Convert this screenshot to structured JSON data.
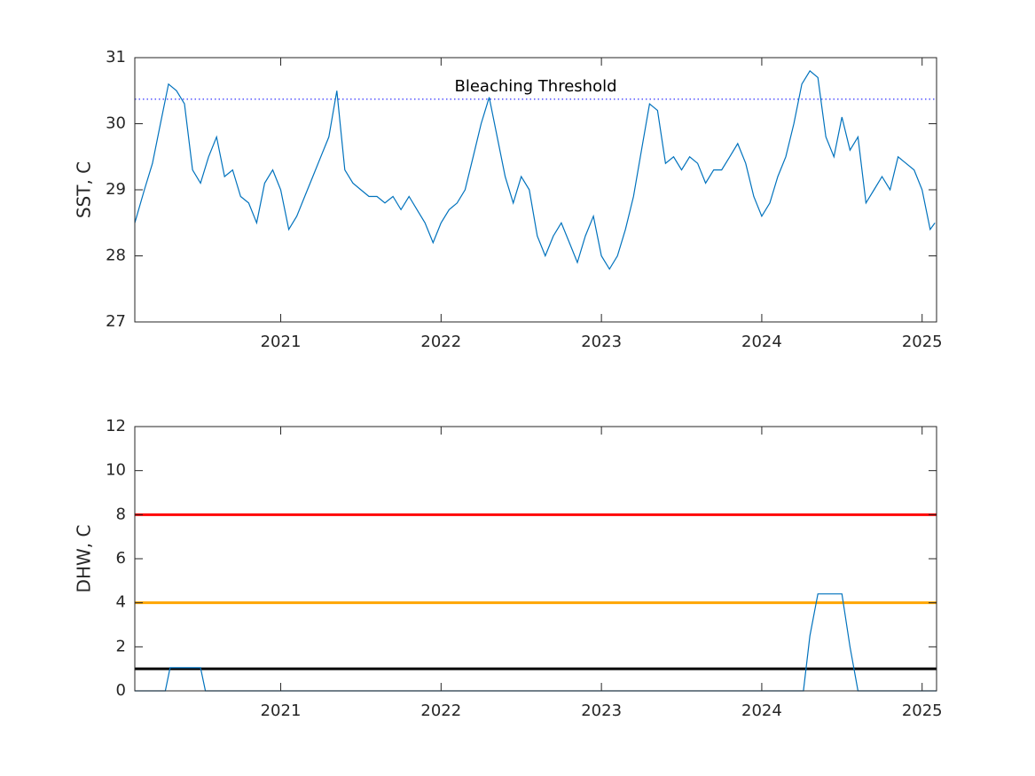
{
  "chart_data": [
    {
      "type": "line",
      "ylabel": "SST, C",
      "color": "#0072bd",
      "xlim": [
        2020.09,
        2025.09
      ],
      "xticks": [
        2021,
        2022,
        2023,
        2024,
        2025
      ],
      "ylim": [
        27,
        31
      ],
      "yticks": [
        27,
        28,
        29,
        30,
        31
      ],
      "x": [
        2020.09,
        2020.15,
        2020.2,
        2020.25,
        2020.3,
        2020.35,
        2020.4,
        2020.45,
        2020.5,
        2020.55,
        2020.6,
        2020.65,
        2020.7,
        2020.75,
        2020.8,
        2020.85,
        2020.9,
        2020.95,
        2021.0,
        2021.05,
        2021.1,
        2021.15,
        2021.2,
        2021.25,
        2021.3,
        2021.35,
        2021.4,
        2021.45,
        2021.5,
        2021.55,
        2021.6,
        2021.65,
        2021.7,
        2021.75,
        2021.8,
        2021.85,
        2021.9,
        2021.95,
        2022.0,
        2022.05,
        2022.1,
        2022.15,
        2022.2,
        2022.25,
        2022.3,
        2022.35,
        2022.4,
        2022.45,
        2022.5,
        2022.55,
        2022.6,
        2022.65,
        2022.7,
        2022.75,
        2022.8,
        2022.85,
        2022.9,
        2022.95,
        2023.0,
        2023.05,
        2023.1,
        2023.15,
        2023.2,
        2023.25,
        2023.3,
        2023.35,
        2023.4,
        2023.45,
        2023.5,
        2023.55,
        2023.6,
        2023.65,
        2023.7,
        2023.75,
        2023.8,
        2023.85,
        2023.9,
        2023.95,
        2024.0,
        2024.05,
        2024.1,
        2024.15,
        2024.2,
        2024.25,
        2024.3,
        2024.35,
        2024.4,
        2024.45,
        2024.5,
        2024.55,
        2024.6,
        2024.65,
        2024.7,
        2024.75,
        2024.8,
        2024.85,
        2024.9,
        2024.95,
        2025.0,
        2025.05,
        2025.08
      ],
      "values": [
        28.5,
        29.0,
        29.4,
        30.0,
        30.6,
        30.5,
        30.3,
        29.3,
        29.1,
        29.5,
        29.8,
        29.2,
        29.3,
        28.9,
        28.8,
        28.5,
        29.1,
        29.3,
        29.0,
        28.4,
        28.6,
        28.9,
        29.2,
        29.5,
        29.8,
        30.5,
        29.3,
        29.1,
        29.0,
        28.9,
        28.9,
        28.8,
        28.9,
        28.7,
        28.9,
        28.7,
        28.5,
        28.2,
        28.5,
        28.7,
        28.8,
        29.0,
        29.5,
        30.0,
        30.4,
        29.8,
        29.2,
        28.8,
        29.2,
        29.0,
        28.3,
        28.0,
        28.3,
        28.5,
        28.2,
        27.9,
        28.3,
        28.6,
        28.0,
        27.8,
        28.0,
        28.4,
        28.9,
        29.6,
        30.3,
        30.2,
        29.4,
        29.5,
        29.3,
        29.5,
        29.4,
        29.1,
        29.3,
        29.3,
        29.5,
        29.7,
        29.4,
        28.9,
        28.6,
        28.8,
        29.2,
        29.5,
        30.0,
        30.6,
        30.8,
        30.7,
        29.8,
        29.5,
        30.1,
        29.6,
        29.8,
        28.8,
        29.0,
        29.2,
        29.0,
        29.5,
        29.4,
        29.3,
        29.0,
        28.4,
        28.5
      ],
      "reference_lines": [
        {
          "value": 30.37,
          "color": "#0000ff",
          "style": "dotted"
        }
      ],
      "annotations": [
        "Bleaching Threshold"
      ]
    },
    {
      "type": "line",
      "ylabel": "DHW, C",
      "color": "#0072bd",
      "xlim": [
        2020.09,
        2025.09
      ],
      "xticks": [
        2021,
        2022,
        2023,
        2024,
        2025
      ],
      "ylim": [
        0,
        12
      ],
      "yticks": [
        0,
        2,
        4,
        6,
        8,
        10,
        12
      ],
      "x": [
        2020.09,
        2020.28,
        2020.31,
        2020.5,
        2020.53,
        2024.26,
        2024.3,
        2024.35,
        2024.5,
        2024.55,
        2024.6,
        2025.09
      ],
      "values": [
        0,
        0,
        1.05,
        1.05,
        0,
        0,
        2.5,
        4.4,
        4.4,
        2.0,
        0,
        0
      ],
      "reference_lines": [
        {
          "value": 8,
          "color": "#ff0000",
          "style": "solid"
        },
        {
          "value": 4,
          "color": "#ffa500",
          "style": "solid"
        },
        {
          "value": 1,
          "color": "#000000",
          "style": "solid"
        }
      ]
    }
  ]
}
